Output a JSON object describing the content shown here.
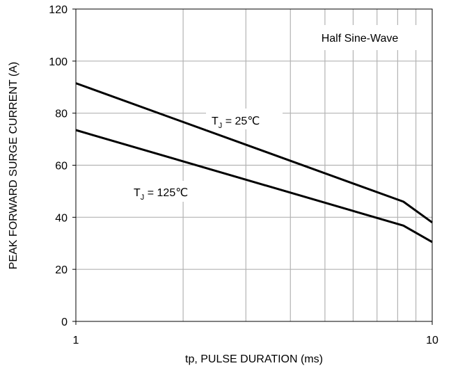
{
  "chart_data": {
    "type": "line",
    "xscale": "log",
    "xlim": [
      1,
      10
    ],
    "ylim": [
      0,
      120
    ],
    "xticks": [
      1,
      10
    ],
    "xtick_labels": [
      "1",
      "10"
    ],
    "x_minor_gridlines": [
      2,
      3,
      4,
      5,
      6,
      7,
      8,
      9
    ],
    "yticks": [
      0,
      20,
      40,
      60,
      80,
      100,
      120
    ],
    "ytick_labels": [
      "0",
      "20",
      "40",
      "60",
      "80",
      "100",
      "120"
    ],
    "grid": true,
    "xlabel": "tp, PULSE DURATION (ms)",
    "ylabel": "PEAK FORWARD SURGE CURRENT (A)",
    "annotation": "Half Sine-Wave",
    "series": [
      {
        "label_main": "T",
        "label_sub": "J",
        "label_rest": " = 25℃",
        "color": "#000000",
        "x": [
          1,
          8.3,
          10
        ],
        "y": [
          91.5,
          46,
          38
        ]
      },
      {
        "label_main": "T",
        "label_sub": "J",
        "label_rest": " = 125℃",
        "color": "#000000",
        "x": [
          1,
          8.3,
          10
        ],
        "y": [
          73.5,
          36.8,
          30.5
        ]
      }
    ]
  }
}
